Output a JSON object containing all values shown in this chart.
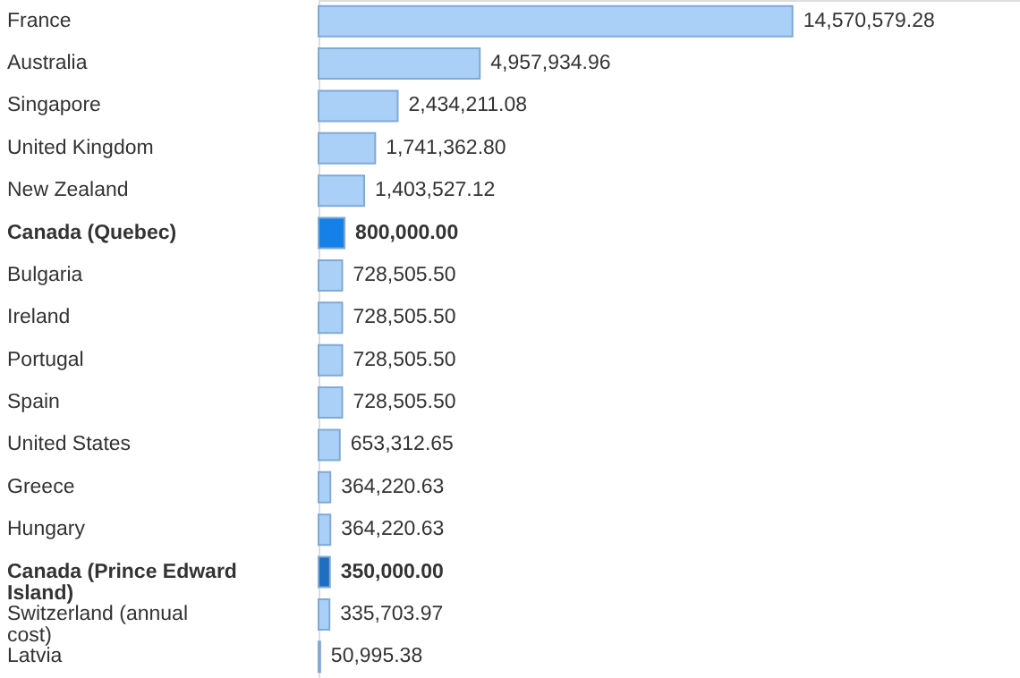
{
  "chart_data": {
    "type": "bar",
    "orientation": "horizontal",
    "value_labels": [
      "14,570,579.28",
      "4,957,934.96",
      "2,434,211.08",
      "1,741,362.80",
      "1,403,527.12",
      "800,000.00",
      "728,505.50",
      "728,505.50",
      "728,505.50",
      "728,505.50",
      "653,312.65",
      "364,220.63",
      "364,220.63",
      "350,000.00",
      "335,703.97",
      "50,995.38"
    ],
    "categories": [
      "France",
      "Australia",
      "Singapore",
      "United Kingdom",
      "New Zealand",
      "Canada (Quebec)",
      "Bulgaria",
      "Ireland",
      "Portugal",
      "Spain",
      "United States",
      "Greece",
      "Hungary",
      "Canada (Prince Edward Island)",
      "Switzerland (annual cost)",
      "Latvia"
    ],
    "values": [
      14570579.28,
      4957934.96,
      2434211.08,
      1741362.8,
      1403527.12,
      800000.0,
      728505.5,
      728505.5,
      728505.5,
      728505.5,
      653312.65,
      364220.63,
      364220.63,
      350000.0,
      335703.97,
      50995.38
    ],
    "colors": [
      "#aad0f7",
      "#aad0f7",
      "#aad0f7",
      "#aad0f7",
      "#aad0f7",
      "#1580e8",
      "#aad0f7",
      "#aad0f7",
      "#aad0f7",
      "#aad0f7",
      "#aad0f7",
      "#aad0f7",
      "#aad0f7",
      "#1f6ec0",
      "#aad0f7",
      "#aad0f7"
    ]
  }
}
